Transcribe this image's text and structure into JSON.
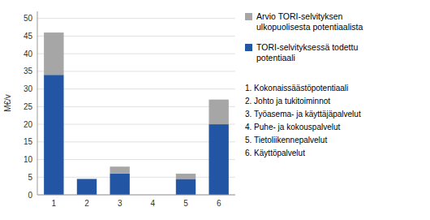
{
  "chart_data": {
    "type": "bar",
    "stacked": true,
    "grid": true,
    "y_label": "M€/v",
    "categories": [
      "1",
      "2",
      "3",
      "4",
      "5",
      "6"
    ],
    "series": [
      {
        "name": "TORI-selvityksessä todettu\npotentiaali",
        "color": "#2255A4",
        "values": [
          34,
          4.5,
          6,
          0,
          4.5,
          20
        ]
      },
      {
        "name": "Arvio TORI-selvityksen\nulkopuolisesta potentiaalista",
        "color": "#A6A6A6",
        "values": [
          12,
          0,
          2,
          0,
          1.5,
          7
        ]
      }
    ],
    "ylim": [
      0,
      52
    ],
    "yticks": [
      0,
      5,
      10,
      15,
      20,
      25,
      30,
      35,
      40,
      45,
      50
    ],
    "annotations": [
      "1. Kokonaissäästöpotentiaali",
      "2. Johto ja tukitoiminnot",
      "3. Työasema- ja käyttäjäpalvelut",
      "4. Puhe- ja kokouspalvelut",
      "5. Tietoliikenne­palvelut",
      "6. Käyttöpalvelut"
    ]
  }
}
